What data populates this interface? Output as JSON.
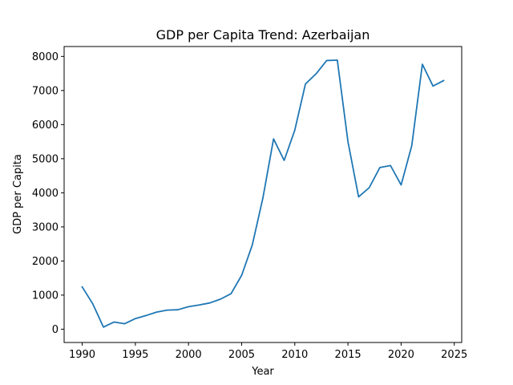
{
  "chart_data": {
    "type": "line",
    "title": "GDP per Capita Trend: Azerbaijan",
    "xlabel": "Year",
    "ylabel": "GDP per Capita",
    "xlim": [
      1988.3,
      2025.7
    ],
    "ylim": [
      -390,
      8290
    ],
    "xticks": [
      1990,
      1995,
      2000,
      2005,
      2010,
      2015,
      2020,
      2025
    ],
    "yticks": [
      0,
      1000,
      2000,
      3000,
      4000,
      5000,
      6000,
      7000,
      8000
    ],
    "grid": false,
    "series": [
      {
        "color": "#1f77b4",
        "x": [
          1990,
          1991,
          1992,
          1993,
          1994,
          1995,
          1996,
          1997,
          1998,
          1999,
          2000,
          2001,
          2002,
          2003,
          2004,
          2005,
          2006,
          2007,
          2008,
          2009,
          2010,
          2011,
          2012,
          2013,
          2014,
          2015,
          2016,
          2017,
          2018,
          2019,
          2020,
          2021,
          2022,
          2023,
          2024
        ],
        "y": [
          1240,
          740,
          60,
          210,
          160,
          310,
          400,
          500,
          560,
          570,
          660,
          710,
          770,
          880,
          1040,
          1580,
          2470,
          3850,
          5580,
          4950,
          5840,
          7190,
          7490,
          7880,
          7890,
          5500,
          3880,
          4150,
          4740,
          4800,
          4230,
          5380,
          7770,
          7130,
          7290
        ]
      }
    ]
  }
}
